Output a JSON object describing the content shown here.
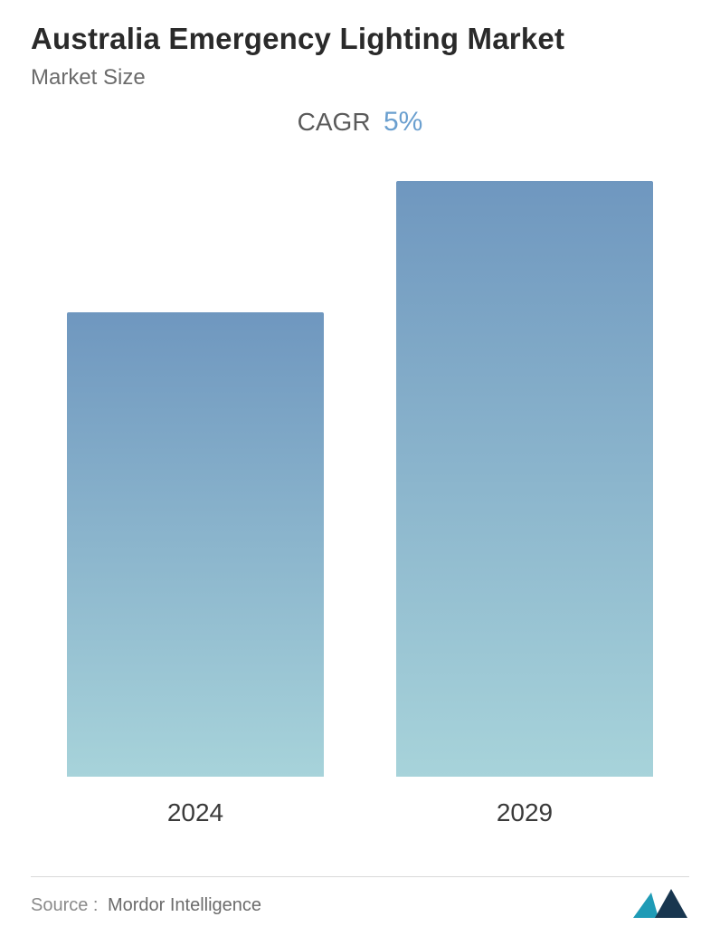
{
  "header": {
    "title": "Australia Emergency Lighting Market",
    "subtitle": "Market Size",
    "cagr_label": "CAGR",
    "cagr_value": "5%",
    "title_fontsize": 33,
    "title_color": "#2a2a2a",
    "subtitle_fontsize": 24,
    "subtitle_color": "#6b6b6b",
    "cagr_label_color": "#5a5a5a",
    "cagr_value_color": "#6a9fcf",
    "cagr_fontsize": 28
  },
  "chart": {
    "type": "bar",
    "categories": [
      "2024",
      "2029"
    ],
    "values": [
      78,
      100
    ],
    "value_unit": "relative_height_percent",
    "bar_width_percent": 78,
    "bar_gradient_top": "#6f97bf",
    "bar_gradient_bottom": "#a7d3da",
    "background_color": "#ffffff",
    "xaxis_label_fontsize": 28,
    "xaxis_label_color": "#3a3a3a",
    "ylim": [
      0,
      100
    ],
    "grid": false
  },
  "footer": {
    "source_label": "Source :",
    "source_name": "Mordor Intelligence",
    "divider_color": "#d9d9d9",
    "logo_colors": {
      "left_triangle": "#1f9bb6",
      "right_triangle": "#18364f"
    }
  }
}
